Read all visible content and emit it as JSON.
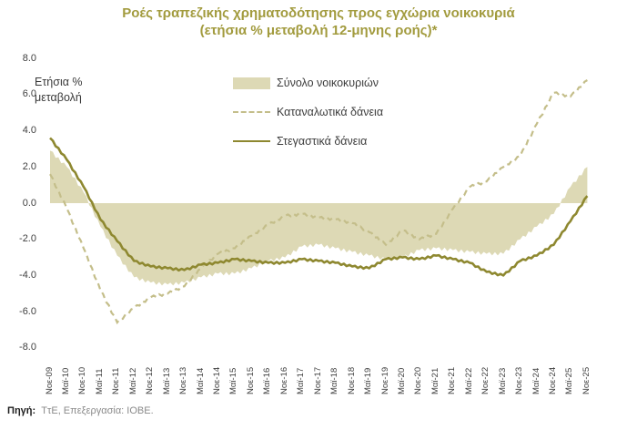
{
  "title": {
    "line1": "Ροές τραπεζικής χρηματοδότησης προς εγχώρια νοικοκυριά",
    "line2": "(ετήσια % μεταβολή 12-μηνης ροής)*"
  },
  "axis_note": {
    "line1": "Ετήσια %",
    "line2": "μεταβολή"
  },
  "legend": {
    "items": [
      {
        "label": "Σύνολο νοικοκυριών",
        "swatch": "area"
      },
      {
        "label": "Καταναλωτικά δάνεια",
        "swatch": "dashed"
      },
      {
        "label": "Στεγαστικά δάνεια",
        "swatch": "solid"
      }
    ]
  },
  "source": {
    "prefix": "Πηγή:",
    "text": "ΤτΕ, Επεξεργασία: ΙΟΒΕ."
  },
  "colors": {
    "title": "#a29b3e",
    "area_fill": "#ddd9b5",
    "dashed_line": "#c4be8a",
    "solid_line": "#8e8830",
    "axis_text": "#404040",
    "source_text": "#8a8a8a"
  },
  "chart_data": {
    "type": "line",
    "title": "Ροές τραπεζικής χρηματοδότησης προς εγχώρια νοικοκυριά (ετήσια % μεταβολή 12-μηνης ροής)*",
    "ylabel": "Ετήσια % μεταβολή",
    "xlabel": "",
    "ylim": [
      -8,
      8
    ],
    "ytick_step": 2,
    "grid": false,
    "legend_position": "top-center",
    "x_label_rotation": 90,
    "categories": [
      "Νοε-09",
      "Μαϊ-10",
      "Νοε-10",
      "Μαϊ-11",
      "Νοε-11",
      "Μαϊ-12",
      "Νοε-12",
      "Μαϊ-13",
      "Νοε-13",
      "Μαϊ-14",
      "Νοε-14",
      "Μαϊ-15",
      "Νοε-15",
      "Μαϊ-16",
      "Νοε-16",
      "Μαϊ-17",
      "Νοε-17",
      "Μαϊ-18",
      "Νοε-18",
      "Μαϊ-19",
      "Νοε-19",
      "Μαϊ-20",
      "Νοε-20",
      "Μαϊ-21",
      "Νοε-21",
      "Μαϊ-22",
      "Νοε-22",
      "Μαϊ-23",
      "Νοε-23",
      "Μαϊ-24",
      "Νοε-24",
      "Μαϊ-25",
      "Νοε-25"
    ],
    "series": [
      {
        "name": "Σύνολο νοικοκυριών",
        "style": "area",
        "color": "#ddd9b5",
        "values": [
          2.9,
          2.0,
          0.6,
          -1.3,
          -2.9,
          -4.1,
          -4.4,
          -4.5,
          -4.4,
          -4.1,
          -3.9,
          -3.9,
          -3.6,
          -3.2,
          -3.0,
          -2.4,
          -2.3,
          -2.5,
          -2.7,
          -2.9,
          -3.1,
          -3.0,
          -2.6,
          -2.5,
          -2.6,
          -2.7,
          -2.8,
          -2.8,
          -2.0,
          -1.3,
          -0.6,
          0.9,
          2.0
        ]
      },
      {
        "name": "Καταναλωτικά δάνεια",
        "style": "dashed",
        "color": "#c4be8a",
        "values": [
          1.6,
          -0.3,
          -2.5,
          -4.8,
          -6.6,
          -5.8,
          -5.2,
          -5.0,
          -4.6,
          -3.6,
          -2.8,
          -2.5,
          -1.8,
          -1.2,
          -0.7,
          -0.6,
          -0.8,
          -0.9,
          -1.1,
          -1.6,
          -2.3,
          -1.5,
          -2.0,
          -1.7,
          -0.3,
          0.9,
          1.2,
          2.0,
          2.6,
          4.4,
          6.1,
          5.9,
          6.8
        ]
      },
      {
        "name": "Στεγαστικά δάνεια",
        "style": "solid",
        "color": "#8e8830",
        "values": [
          3.6,
          2.4,
          0.9,
          -0.9,
          -2.1,
          -3.2,
          -3.5,
          -3.6,
          -3.7,
          -3.4,
          -3.3,
          -3.1,
          -3.2,
          -3.3,
          -3.3,
          -3.1,
          -3.2,
          -3.3,
          -3.5,
          -3.6,
          -3.1,
          -3.0,
          -3.1,
          -2.9,
          -3.1,
          -3.3,
          -3.8,
          -4.0,
          -3.2,
          -2.9,
          -2.3,
          -1.0,
          0.4
        ]
      }
    ]
  }
}
